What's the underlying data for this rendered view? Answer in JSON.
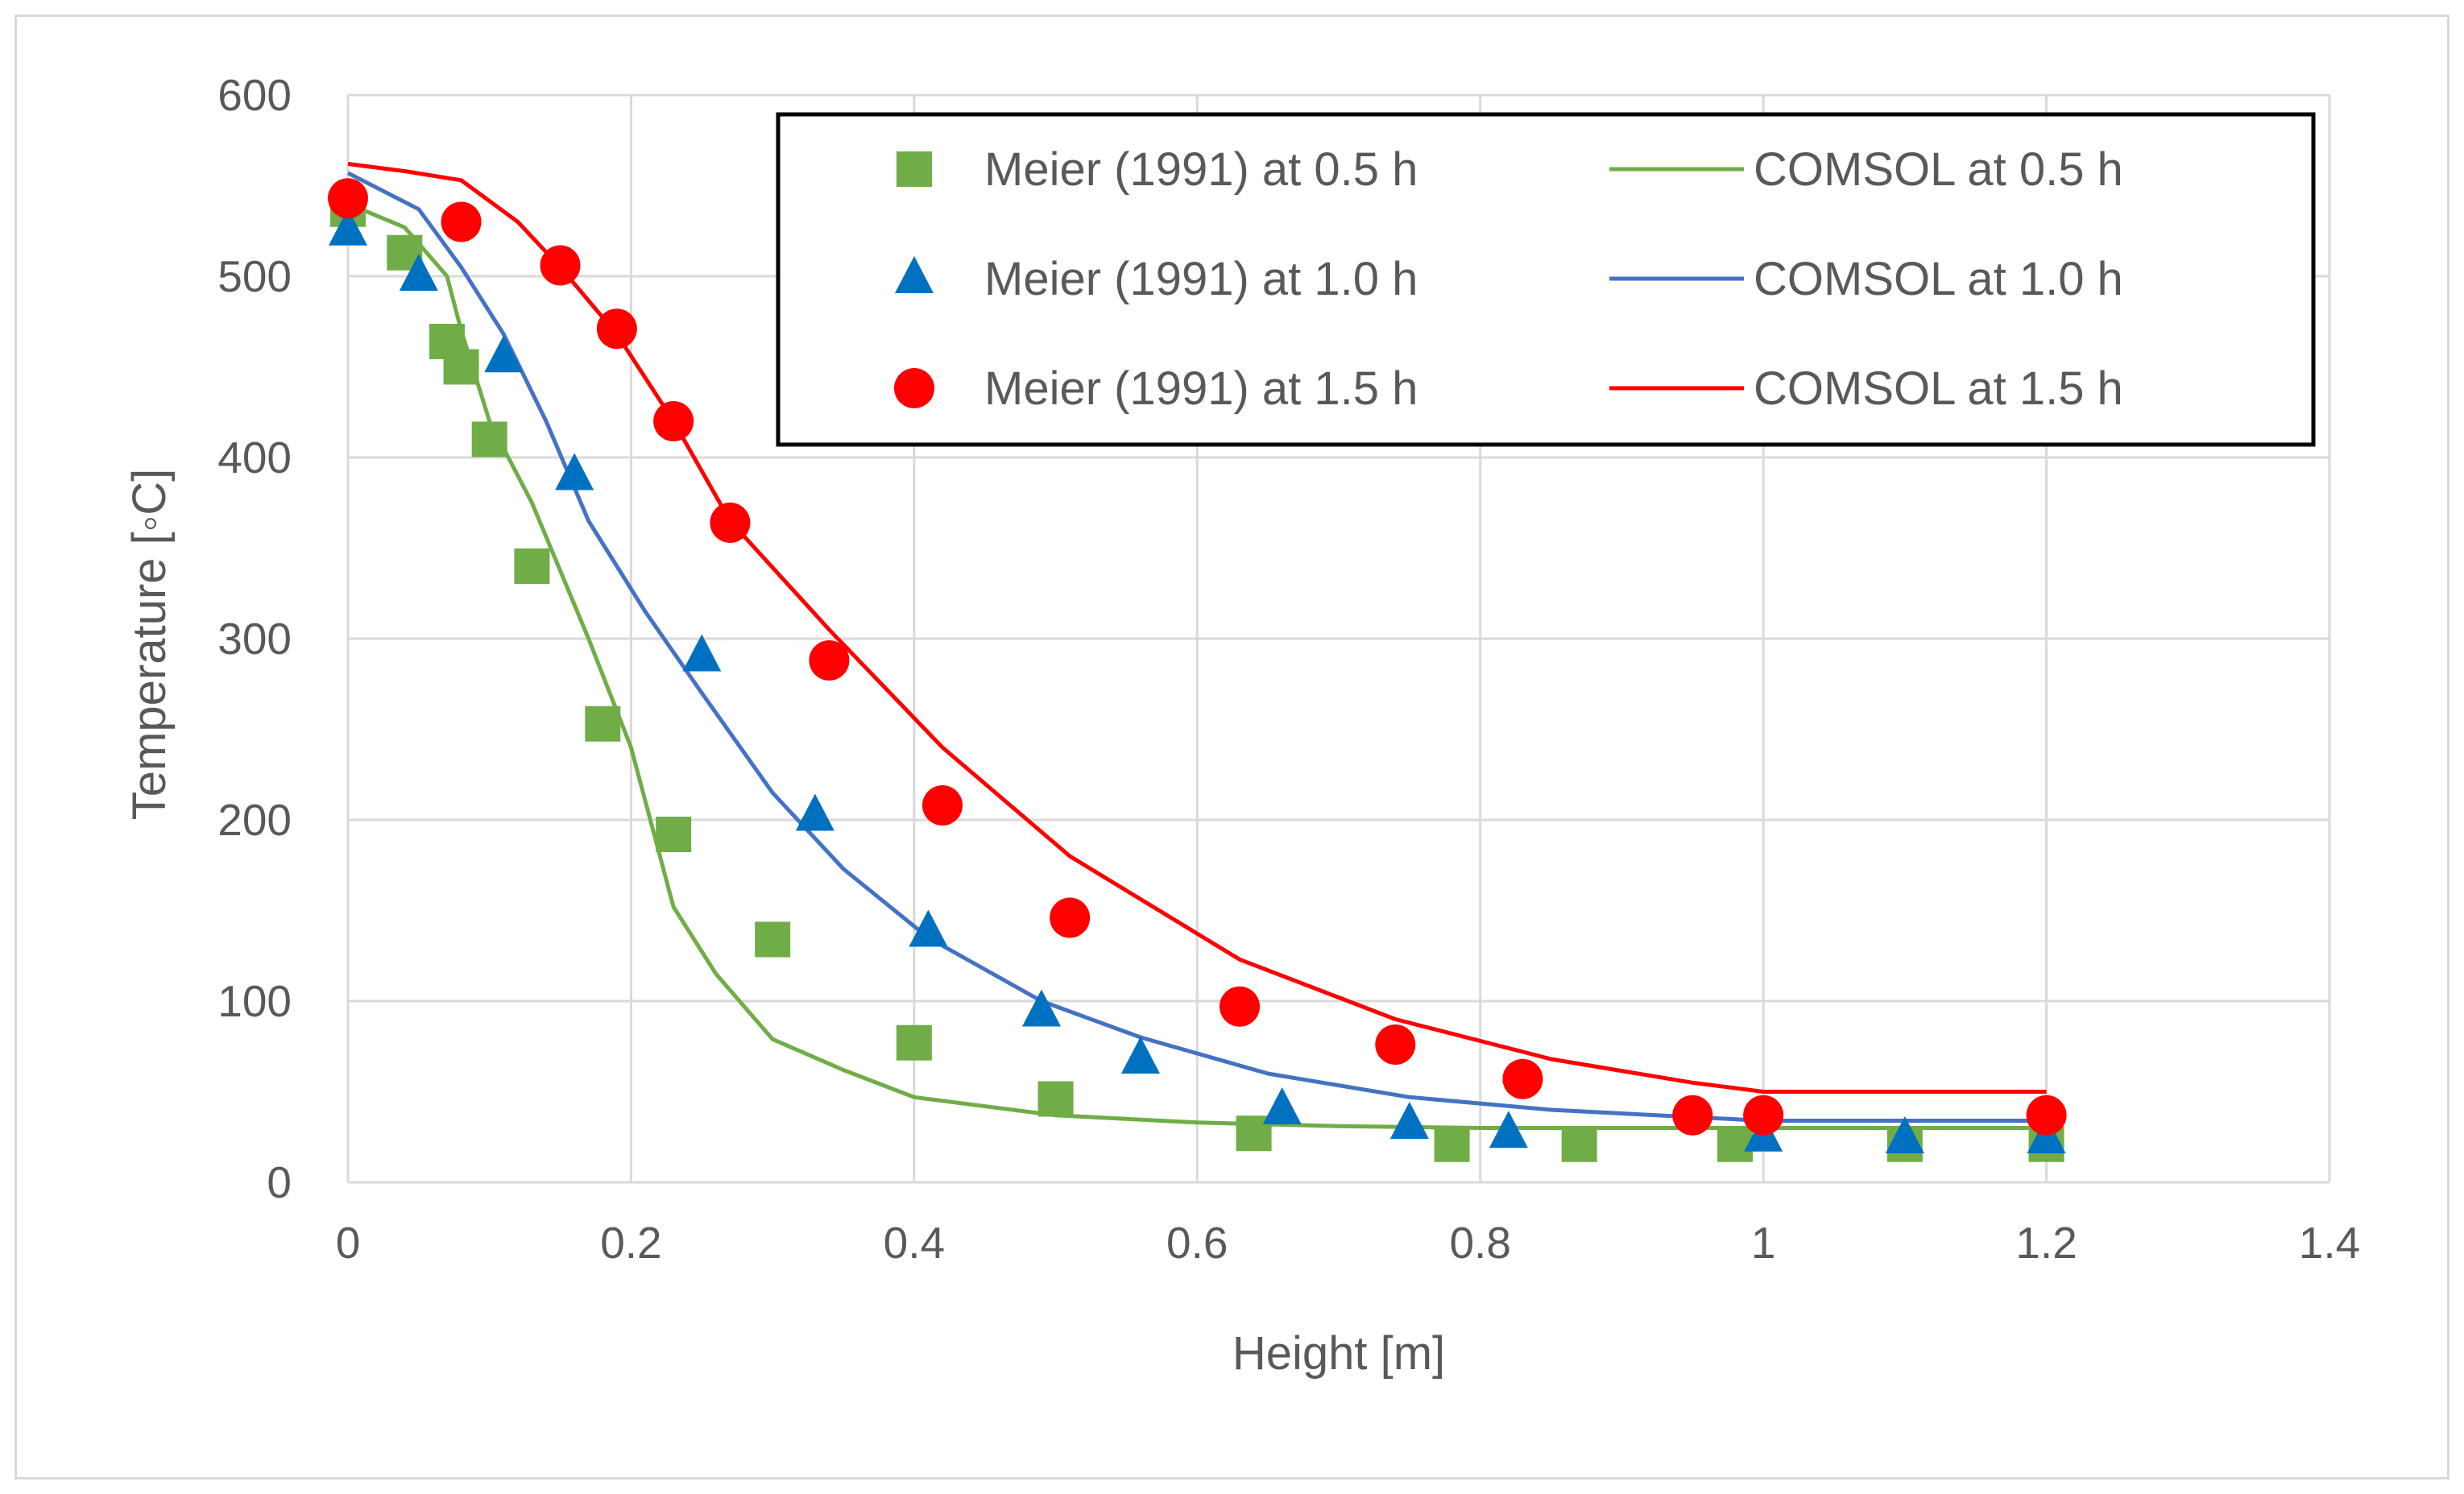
{
  "chart_data": {
    "type": "scatter",
    "title": "",
    "xlabel": "Height [m]",
    "ylabel": "Temperature [◦C]",
    "xlim": [
      0,
      1.4
    ],
    "ylim": [
      0,
      600
    ],
    "x_ticks": [
      0,
      0.2,
      0.4,
      0.6,
      0.8,
      1,
      1.2,
      1.4
    ],
    "y_ticks": [
      0,
      100,
      200,
      300,
      400,
      500,
      600
    ],
    "grid": true,
    "legend_position": "top-right",
    "series": [
      {
        "name": "Meier (1991) at 0.5 h",
        "kind": "markers",
        "marker": "square",
        "color": "#70ad47",
        "points": [
          [
            0,
            537
          ],
          [
            0.04,
            513
          ],
          [
            0.07,
            464
          ],
          [
            0.08,
            450
          ],
          [
            0.1,
            410
          ],
          [
            0.13,
            340
          ],
          [
            0.18,
            253
          ],
          [
            0.23,
            192
          ],
          [
            0.3,
            134
          ],
          [
            0.4,
            77
          ],
          [
            0.5,
            46
          ],
          [
            0.64,
            27
          ],
          [
            0.78,
            21
          ],
          [
            0.87,
            21
          ],
          [
            0.98,
            21
          ],
          [
            1.1,
            21
          ],
          [
            1.2,
            21
          ]
        ]
      },
      {
        "name": "Meier (1991) at 1.0 h",
        "kind": "markers",
        "marker": "triangle",
        "color": "#0070c0",
        "points": [
          [
            0,
            525
          ],
          [
            0.05,
            500
          ],
          [
            0.11,
            455
          ],
          [
            0.16,
            390
          ],
          [
            0.25,
            290
          ],
          [
            0.33,
            202
          ],
          [
            0.41,
            138
          ],
          [
            0.49,
            94
          ],
          [
            0.56,
            68
          ],
          [
            0.66,
            40
          ],
          [
            0.75,
            32
          ],
          [
            0.82,
            27
          ],
          [
            1.0,
            25
          ],
          [
            1.1,
            24
          ],
          [
            1.2,
            24
          ]
        ]
      },
      {
        "name": "Meier (1991) at 1.5 h",
        "kind": "markers",
        "marker": "circle",
        "color": "#ff0000",
        "points": [
          [
            0,
            543
          ],
          [
            0.08,
            530
          ],
          [
            0.15,
            506
          ],
          [
            0.19,
            471
          ],
          [
            0.23,
            420
          ],
          [
            0.27,
            364
          ],
          [
            0.34,
            288
          ],
          [
            0.42,
            208
          ],
          [
            0.51,
            146
          ],
          [
            0.63,
            97
          ],
          [
            0.74,
            76
          ],
          [
            0.83,
            57
          ],
          [
            0.95,
            37
          ],
          [
            1.0,
            37
          ],
          [
            1.2,
            37
          ]
        ]
      },
      {
        "name": "COMSOL at 0.5 h",
        "kind": "line",
        "color": "#70ad47",
        "points": [
          [
            0,
            540
          ],
          [
            0.04,
            527
          ],
          [
            0.07,
            500
          ],
          [
            0.08,
            470
          ],
          [
            0.1,
            420
          ],
          [
            0.13,
            375
          ],
          [
            0.17,
            300
          ],
          [
            0.2,
            240
          ],
          [
            0.23,
            152
          ],
          [
            0.26,
            115
          ],
          [
            0.3,
            79
          ],
          [
            0.35,
            62
          ],
          [
            0.4,
            47
          ],
          [
            0.5,
            37
          ],
          [
            0.6,
            33
          ],
          [
            0.7,
            31
          ],
          [
            0.8,
            30
          ],
          [
            1.0,
            30
          ],
          [
            1.2,
            30
          ]
        ]
      },
      {
        "name": "COMSOL at 1.0 h",
        "kind": "line",
        "color": "#4472c4",
        "points": [
          [
            0,
            557
          ],
          [
            0.05,
            537
          ],
          [
            0.08,
            505
          ],
          [
            0.11,
            468
          ],
          [
            0.14,
            420
          ],
          [
            0.17,
            365
          ],
          [
            0.21,
            315
          ],
          [
            0.25,
            270
          ],
          [
            0.3,
            215
          ],
          [
            0.35,
            173
          ],
          [
            0.41,
            135
          ],
          [
            0.49,
            100
          ],
          [
            0.56,
            80
          ],
          [
            0.65,
            60
          ],
          [
            0.75,
            47
          ],
          [
            0.85,
            40
          ],
          [
            1.0,
            34
          ],
          [
            1.2,
            34
          ]
        ]
      },
      {
        "name": "COMSOL at 1.5 h",
        "kind": "line",
        "color": "#ff0000",
        "points": [
          [
            0,
            562
          ],
          [
            0.04,
            558
          ],
          [
            0.08,
            553
          ],
          [
            0.12,
            530
          ],
          [
            0.15,
            505
          ],
          [
            0.19,
            468
          ],
          [
            0.23,
            420
          ],
          [
            0.27,
            365
          ],
          [
            0.34,
            305
          ],
          [
            0.42,
            240
          ],
          [
            0.51,
            180
          ],
          [
            0.63,
            123
          ],
          [
            0.74,
            90
          ],
          [
            0.85,
            68
          ],
          [
            0.95,
            55
          ],
          [
            1.0,
            50
          ],
          [
            1.2,
            50
          ]
        ]
      }
    ]
  }
}
